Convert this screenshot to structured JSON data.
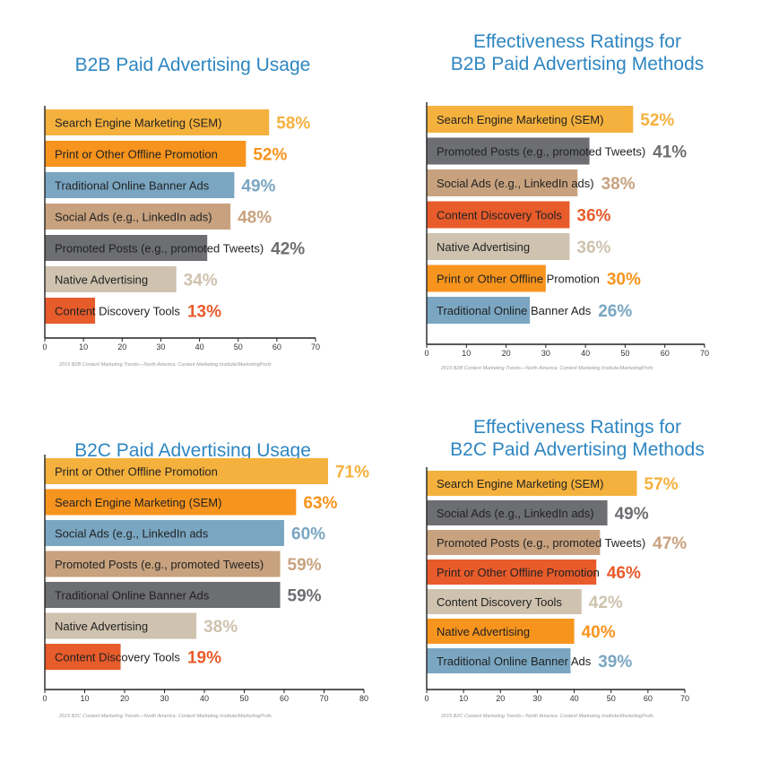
{
  "colors": {
    "gold": "#f5b13d",
    "orange": "#f7941d",
    "blue": "#7aa6c2",
    "tan": "#c8a27e",
    "gray": "#6d6e71",
    "beige": "#cfc2ae",
    "red": "#e85b2b",
    "title": "#2e86c1"
  },
  "chart_data": [
    {
      "type": "bar",
      "orientation": "horizontal",
      "title_lines": [
        "B2B Paid Advertising Usage"
      ],
      "categories": [
        "Search Engine Marketing (SEM)",
        "Print or Other Offline Promotion",
        "Traditional Online Banner Ads",
        "Social Ads (e.g., LinkedIn ads)",
        "Promoted Posts (e.g., promoted Tweets)",
        "Native Advertising",
        "Content Discovery Tools"
      ],
      "values": [
        58,
        52,
        49,
        48,
        42,
        34,
        13
      ],
      "value_labels": [
        "58%",
        "52%",
        "49%",
        "48%",
        "42%",
        "34%",
        "13%"
      ],
      "bar_colors": [
        "gold",
        "orange",
        "blue",
        "tan",
        "gray",
        "beige",
        "red"
      ],
      "xlim": [
        0,
        70
      ],
      "xticks": [
        "0",
        "10",
        "20",
        "30",
        "40",
        "50",
        "60",
        "70"
      ],
      "source": "2015 B2B Content Marketing Trends—North America: Content Marketing Institute/MarketingProfs"
    },
    {
      "type": "bar",
      "orientation": "horizontal",
      "title_lines": [
        "Effectiveness Ratings for",
        "B2B Paid Advertising Methods"
      ],
      "categories": [
        "Search Engine Marketing (SEM)",
        "Promoted Posts (e.g., promoted Tweets)",
        "Social Ads (e.g., LinkedIn ads)",
        "Content Discovery Tools",
        "Native Advertising",
        "Print or Other Offline Promotion",
        "Traditional Online Banner Ads"
      ],
      "values": [
        52,
        41,
        38,
        36,
        36,
        30,
        26
      ],
      "value_labels": [
        "52%",
        "41%",
        "38%",
        "36%",
        "36%",
        "30%",
        "26%"
      ],
      "bar_colors": [
        "gold",
        "gray",
        "tan",
        "red",
        "beige",
        "orange",
        "blue"
      ],
      "xlim": [
        0,
        70
      ],
      "xticks": [
        "0",
        "10",
        "20",
        "30",
        "40",
        "50",
        "60",
        "70"
      ],
      "source": "2015 B2B Content Marketing Trends—North America: Content Marketing Institute/MarketingProfs"
    },
    {
      "type": "bar",
      "orientation": "horizontal",
      "title_lines": [
        "B2C Paid Advertising Usage"
      ],
      "categories": [
        "Print or Other Offline Promotion",
        "Search Engine Marketing (SEM)",
        "Social Ads (e.g., LinkedIn ads",
        "Promoted Posts (e.g., promoted Tweets)",
        "Traditional Online Banner Ads",
        "Native Advertising",
        "Content Discovery Tools"
      ],
      "values": [
        71,
        63,
        60,
        59,
        59,
        38,
        19
      ],
      "value_labels": [
        "71%",
        "63%",
        "60%",
        "59%",
        "59%",
        "38%",
        "19%"
      ],
      "bar_colors": [
        "gold",
        "orange",
        "blue",
        "tan",
        "gray",
        "beige",
        "red"
      ],
      "xlim": [
        0,
        80
      ],
      "xticks": [
        "0",
        "10",
        "20",
        "30",
        "40",
        "50",
        "60",
        "70",
        "80"
      ],
      "source": "2015 B2C Content Marketing Trends—North America: Content Marketing Institute/MarketingProfs"
    },
    {
      "type": "bar",
      "orientation": "horizontal",
      "title_lines": [
        "Effectiveness Ratings for",
        "B2C Paid Advertising Methods"
      ],
      "categories": [
        "Search Engine Marketing (SEM)",
        "Social Ads (e.g., LinkedIn ads)",
        "Promoted Posts (e.g., promoted Tweets)",
        "Print or Other Offline Promotion",
        "Content Discovery Tools",
        "Native Advertising",
        "Traditional Online Banner Ads"
      ],
      "values": [
        57,
        49,
        47,
        46,
        42,
        40,
        39
      ],
      "value_labels": [
        "57%",
        "49%",
        "47%",
        "46%",
        "42%",
        "40%",
        "39%"
      ],
      "bar_colors": [
        "gold",
        "gray",
        "tan",
        "red",
        "beige",
        "orange",
        "blue"
      ],
      "xlim": [
        0,
        70
      ],
      "xticks": [
        "0",
        "10",
        "20",
        "30",
        "40",
        "50",
        "60",
        "70"
      ],
      "source": "2015 B2C Content Marketing Trends—North America: Content Marketing Institute/MarketingProfs"
    }
  ]
}
